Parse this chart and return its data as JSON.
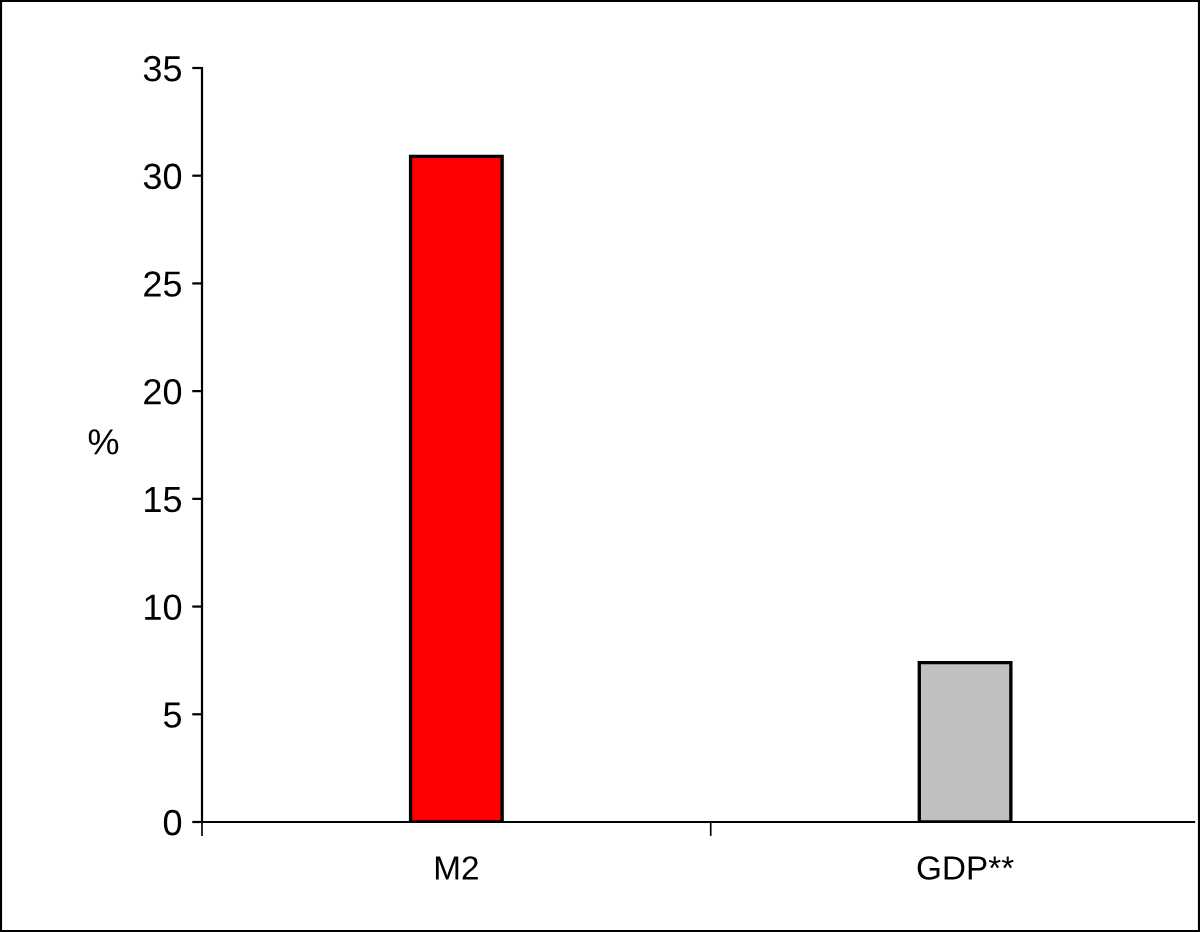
{
  "chart_data": {
    "type": "bar",
    "ylabel": "%",
    "categories": [
      "M2",
      "GDP**"
    ],
    "values": [
      30.9,
      7.4
    ],
    "colors": [
      "#ff0000",
      "#c0c0c0"
    ],
    "ylim": [
      0,
      35
    ],
    "yticks": [
      0,
      5,
      10,
      15,
      20,
      25,
      30,
      35
    ],
    "grid": false
  }
}
